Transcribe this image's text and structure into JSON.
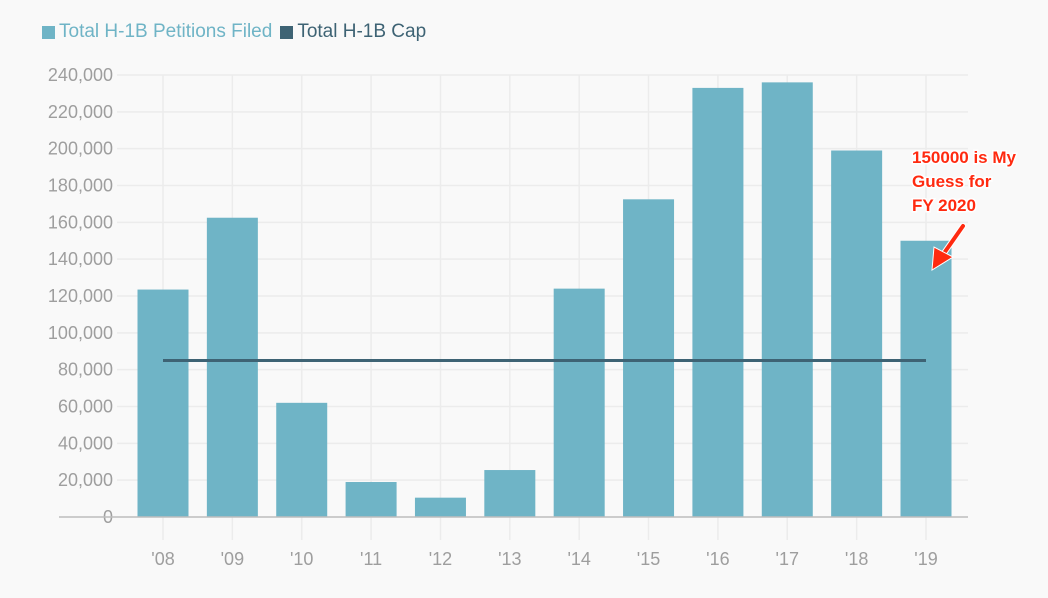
{
  "chart_data": {
    "type": "bar",
    "title": "",
    "xlabel": "",
    "ylabel": "",
    "categories": [
      "'08",
      "'09",
      "'10",
      "'11",
      "'12",
      "'13",
      "'14",
      "'15",
      "'16",
      "'17",
      "'18",
      "'19"
    ],
    "series": [
      {
        "name": "Total H-1B Petitions Filed",
        "type": "bar",
        "color": "#6fb4c6",
        "values": [
          123500,
          162500,
          62000,
          19000,
          10500,
          25500,
          124000,
          172500,
          233000,
          236000,
          199000,
          150000
        ]
      },
      {
        "name": "Total H-1B Cap",
        "type": "line",
        "color": "#3e6374",
        "values": [
          85000,
          85000,
          85000,
          85000,
          85000,
          85000,
          85000,
          85000,
          85000,
          85000,
          85000,
          85000
        ]
      }
    ],
    "ylim": [
      0,
      240000
    ],
    "yticks": [
      0,
      20000,
      40000,
      60000,
      80000,
      100000,
      120000,
      140000,
      160000,
      180000,
      200000,
      220000,
      240000
    ],
    "ytick_labels": [
      "0",
      "20,000",
      "40,000",
      "60,000",
      "80,000",
      "100,000",
      "120,000",
      "140,000",
      "160,000",
      "180,000",
      "200,000",
      "220,000",
      "240,000"
    ],
    "grid": true,
    "legend_position": "top-left",
    "annotation": {
      "lines": [
        "150000 is My",
        "Guess for",
        "FY 2020"
      ],
      "color": "#ff2a10",
      "points_to_category": "'19",
      "points_to_value": 150000
    }
  }
}
